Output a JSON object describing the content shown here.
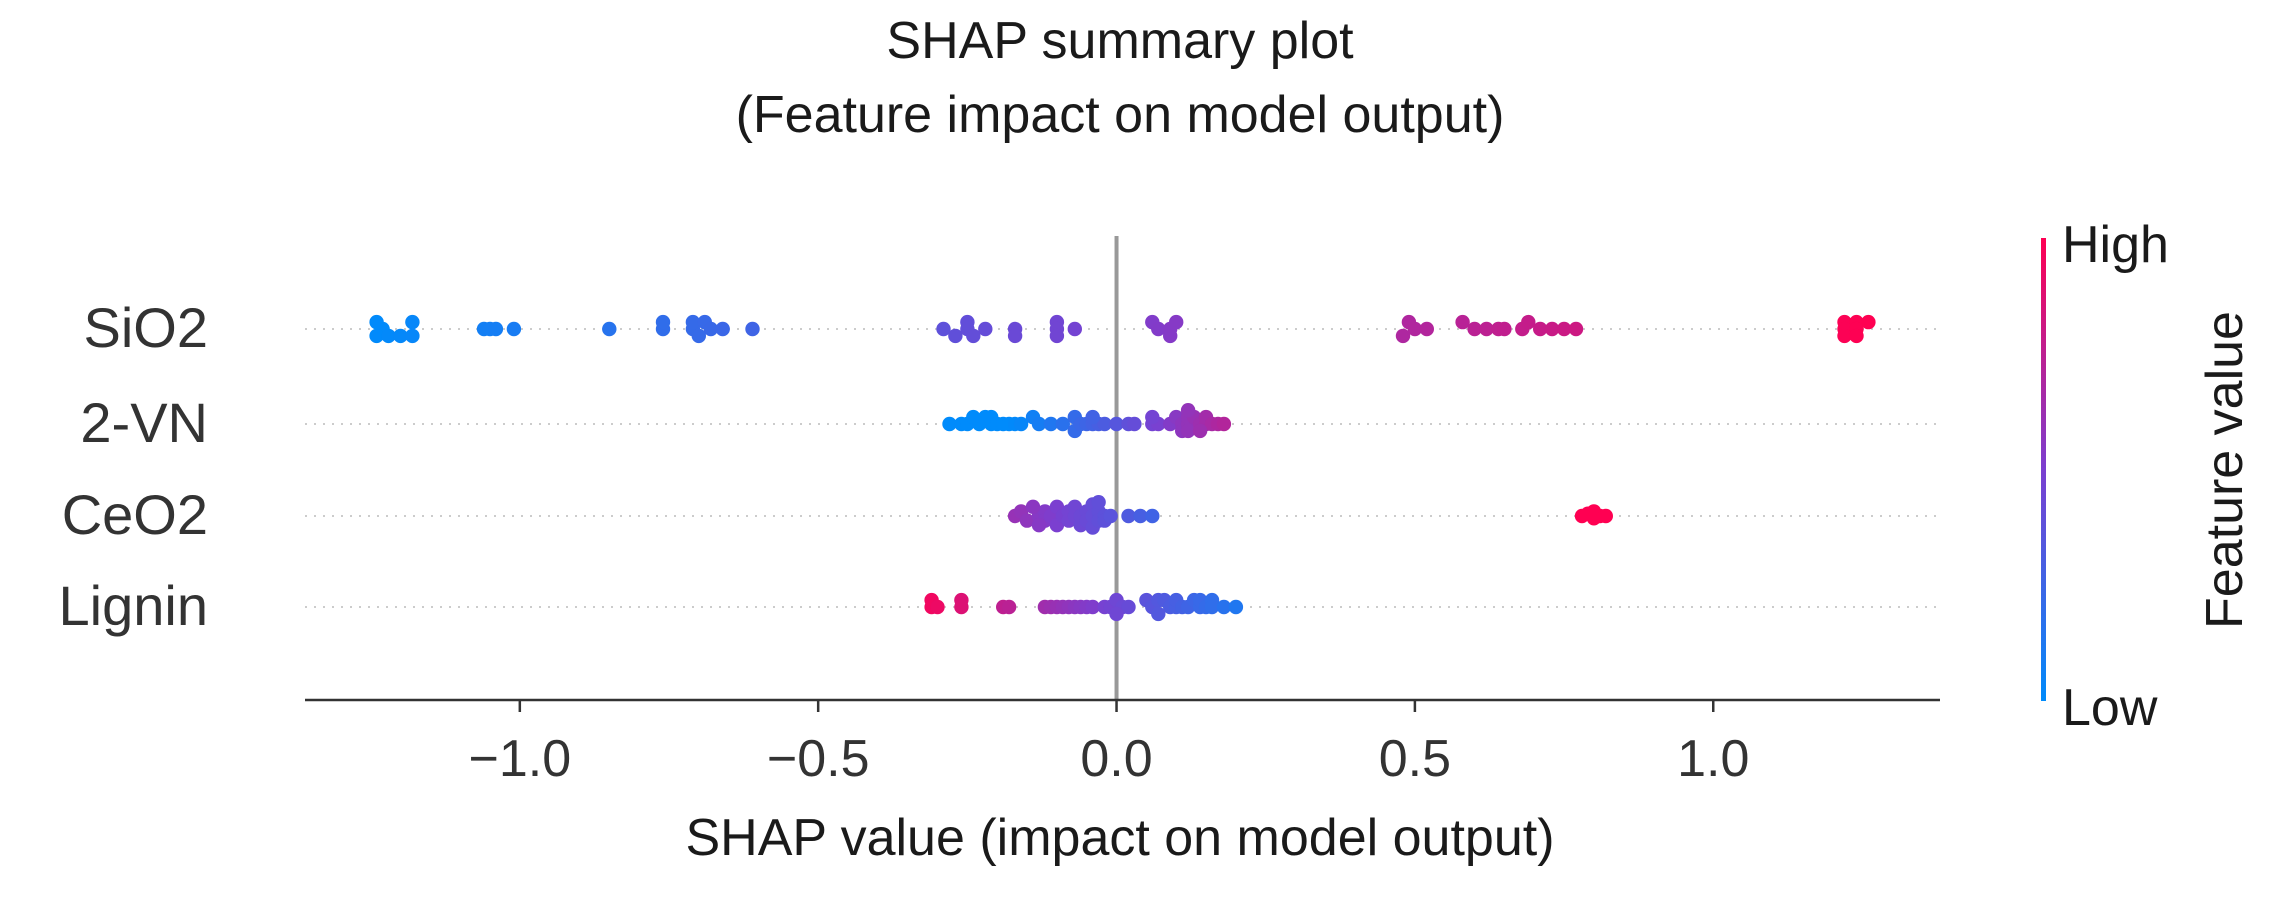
{
  "chart_data": {
    "type": "scatter",
    "title": "SHAP summary plot",
    "subtitle": "(Feature impact on model output)",
    "xlabel": "SHAP value (impact on model output)",
    "xlim": [
      -1.36,
      1.38
    ],
    "xticks": [
      -1.0,
      -0.5,
      0.0,
      0.5,
      1.0
    ],
    "xtick_labels": [
      "−1.0",
      "−0.5",
      "0.0",
      "0.5",
      "1.0"
    ],
    "features": [
      "SiO2",
      "2-VN",
      "CeO2",
      "Lignin"
    ],
    "colorbar": {
      "label": "Feature value",
      "high_label": "High",
      "low_label": "Low"
    },
    "colors": {
      "low": "#008bfb",
      "high": "#ff0052",
      "zero_line": "#999999",
      "grid": "#cccccc"
    },
    "grid": "dotted horizontal per feature",
    "series": [
      {
        "feature": "SiO2",
        "points": [
          [
            -1.23,
            0.0
          ],
          [
            -1.24,
            -0.15
          ],
          [
            -1.22,
            -0.15
          ],
          [
            -1.2,
            -0.15
          ],
          [
            -1.18,
            -0.15
          ],
          [
            -1.24,
            0.15
          ],
          [
            -1.18,
            0.15
          ],
          [
            -1.06,
            0.0
          ],
          [
            -1.05,
            0.0
          ],
          [
            -1.04,
            0.0
          ],
          [
            -1.01,
            0.0
          ],
          [
            -0.85,
            0.0
          ],
          [
            -0.76,
            0.0
          ],
          [
            -0.76,
            0.15
          ],
          [
            -0.71,
            0.0
          ],
          [
            -0.71,
            0.15
          ],
          [
            -0.7,
            -0.15
          ],
          [
            -0.69,
            0.15
          ],
          [
            -0.68,
            0.0
          ],
          [
            -0.66,
            0.0
          ],
          [
            -0.61,
            0.0
          ],
          [
            -0.29,
            0.0
          ],
          [
            -0.27,
            -0.15
          ],
          [
            -0.25,
            0.0
          ],
          [
            -0.25,
            0.15
          ],
          [
            -0.24,
            -0.15
          ],
          [
            -0.22,
            0.0
          ],
          [
            -0.17,
            0.0
          ],
          [
            -0.17,
            -0.15
          ],
          [
            -0.1,
            0.15
          ],
          [
            -0.1,
            0.0
          ],
          [
            -0.1,
            -0.15
          ],
          [
            -0.07,
            0.0
          ],
          [
            0.06,
            0.15
          ],
          [
            0.07,
            0.0
          ],
          [
            0.09,
            -0.15
          ],
          [
            0.09,
            0.0
          ],
          [
            0.1,
            0.15
          ],
          [
            0.49,
            0.15
          ],
          [
            0.5,
            0.0
          ],
          [
            0.52,
            0.0
          ],
          [
            0.48,
            -0.15
          ],
          [
            0.58,
            0.15
          ],
          [
            0.6,
            0.0
          ],
          [
            0.62,
            0.0
          ],
          [
            0.64,
            0.0
          ],
          [
            0.65,
            0.0
          ],
          [
            0.68,
            0.0
          ],
          [
            0.69,
            0.15
          ],
          [
            0.71,
            0.0
          ],
          [
            0.73,
            0.0
          ],
          [
            0.75,
            0.0
          ],
          [
            0.77,
            0.0
          ],
          [
            1.22,
            0.15
          ],
          [
            1.24,
            0.15
          ],
          [
            1.26,
            0.15
          ],
          [
            1.22,
            0.0
          ],
          [
            1.24,
            0.0
          ],
          [
            1.22,
            -0.15
          ],
          [
            1.24,
            -0.15
          ]
        ]
      },
      {
        "feature": "2-VN",
        "points": [
          [
            -0.28,
            0.0
          ],
          [
            -0.26,
            0.0
          ],
          [
            -0.25,
            0.0
          ],
          [
            -0.24,
            0.15
          ],
          [
            -0.22,
            0.15
          ],
          [
            -0.21,
            0.15
          ],
          [
            -0.23,
            0.0
          ],
          [
            -0.21,
            0.0
          ],
          [
            -0.2,
            0.0
          ],
          [
            -0.19,
            0.0
          ],
          [
            -0.18,
            0.0
          ],
          [
            -0.17,
            0.0
          ],
          [
            -0.16,
            0.0
          ],
          [
            -0.14,
            0.15
          ],
          [
            -0.13,
            0.0
          ],
          [
            -0.11,
            0.0
          ],
          [
            -0.09,
            0.0
          ],
          [
            -0.07,
            0.15
          ],
          [
            -0.07,
            -0.15
          ],
          [
            -0.06,
            0.0
          ],
          [
            -0.05,
            0.0
          ],
          [
            -0.04,
            0.0
          ],
          [
            -0.03,
            0.0
          ],
          [
            -0.02,
            0.0
          ],
          [
            -0.04,
            0.15
          ],
          [
            0.0,
            0.0
          ],
          [
            0.02,
            0.0
          ],
          [
            0.03,
            0.0
          ],
          [
            0.06,
            0.0
          ],
          [
            0.07,
            0.0
          ],
          [
            0.06,
            0.15
          ],
          [
            0.09,
            0.0
          ],
          [
            0.1,
            0.15
          ],
          [
            0.11,
            0.0
          ],
          [
            0.11,
            -0.15
          ],
          [
            0.12,
            0.0
          ],
          [
            0.12,
            0.15
          ],
          [
            0.12,
            -0.15
          ],
          [
            0.13,
            0.15
          ],
          [
            0.14,
            0.0
          ],
          [
            0.15,
            0.0
          ],
          [
            0.15,
            0.15
          ],
          [
            0.16,
            0.0
          ],
          [
            0.17,
            0.0
          ],
          [
            0.18,
            0.0
          ],
          [
            0.14,
            -0.15
          ],
          [
            0.12,
            0.3
          ]
        ]
      },
      {
        "feature": "CeO2",
        "points": [
          [
            -0.17,
            0.0
          ],
          [
            -0.16,
            0.1
          ],
          [
            -0.15,
            -0.1
          ],
          [
            -0.13,
            0.0
          ],
          [
            -0.12,
            0.1
          ],
          [
            -0.12,
            -0.1
          ],
          [
            -0.11,
            0.0
          ],
          [
            -0.1,
            0.2
          ],
          [
            -0.1,
            -0.2
          ],
          [
            -0.09,
            0.0
          ],
          [
            -0.08,
            0.1
          ],
          [
            -0.08,
            -0.1
          ],
          [
            -0.07,
            0.0
          ],
          [
            -0.07,
            0.2
          ],
          [
            -0.06,
            -0.2
          ],
          [
            -0.06,
            0.0
          ],
          [
            -0.05,
            0.1
          ],
          [
            -0.05,
            -0.1
          ],
          [
            -0.04,
            0.25
          ],
          [
            -0.04,
            -0.25
          ],
          [
            -0.04,
            0.0
          ],
          [
            -0.03,
            0.1
          ],
          [
            -0.03,
            -0.1
          ],
          [
            -0.03,
            0.3
          ],
          [
            -0.02,
            0.0
          ],
          [
            -0.02,
            -0.1
          ],
          [
            -0.01,
            0.0
          ],
          [
            0.02,
            0.0
          ],
          [
            0.04,
            0.0
          ],
          [
            0.06,
            0.0
          ],
          [
            -0.13,
            -0.2
          ],
          [
            -0.14,
            0.2
          ],
          [
            0.78,
            0.0
          ],
          [
            0.79,
            0.05
          ],
          [
            0.8,
            0.1
          ],
          [
            0.81,
            0.0
          ],
          [
            0.82,
            0.0
          ],
          [
            0.8,
            -0.05
          ]
        ]
      },
      {
        "feature": "Lignin",
        "points": [
          [
            -0.31,
            0.15
          ],
          [
            -0.31,
            0.0
          ],
          [
            -0.3,
            0.0
          ],
          [
            -0.26,
            0.15
          ],
          [
            -0.26,
            0.0
          ],
          [
            -0.19,
            0.0
          ],
          [
            -0.18,
            0.0
          ],
          [
            -0.12,
            0.0
          ],
          [
            -0.11,
            0.0
          ],
          [
            -0.1,
            0.0
          ],
          [
            -0.09,
            0.0
          ],
          [
            -0.08,
            0.0
          ],
          [
            -0.07,
            0.0
          ],
          [
            -0.06,
            0.0
          ],
          [
            -0.05,
            0.0
          ],
          [
            -0.04,
            0.0
          ],
          [
            -0.02,
            0.0
          ],
          [
            -0.01,
            0.0
          ],
          [
            0.0,
            0.15
          ],
          [
            0.01,
            0.0
          ],
          [
            0.02,
            0.0
          ],
          [
            0.0,
            -0.15
          ],
          [
            0.05,
            0.15
          ],
          [
            0.06,
            0.0
          ],
          [
            0.07,
            0.15
          ],
          [
            0.08,
            0.15
          ],
          [
            0.09,
            0.0
          ],
          [
            0.1,
            0.0
          ],
          [
            0.1,
            0.15
          ],
          [
            0.11,
            0.0
          ],
          [
            0.12,
            0.0
          ],
          [
            0.13,
            0.15
          ],
          [
            0.14,
            0.0
          ],
          [
            0.14,
            0.15
          ],
          [
            0.15,
            0.0
          ],
          [
            0.16,
            0.15
          ],
          [
            0.16,
            0.0
          ],
          [
            0.18,
            0.0
          ],
          [
            0.2,
            0.0
          ],
          [
            0.07,
            -0.15
          ]
        ]
      }
    ]
  }
}
